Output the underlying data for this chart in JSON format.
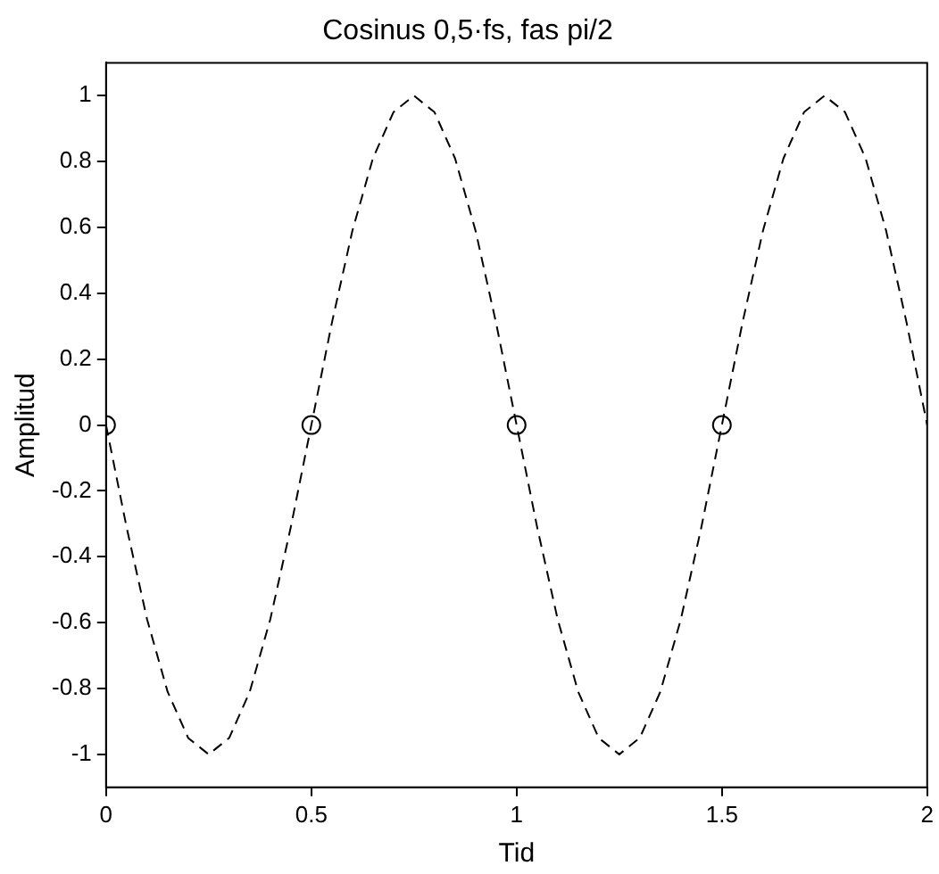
{
  "chart_data": {
    "type": "line",
    "title": "Cosinus 0,5·fs, fas pi/2",
    "xlabel": "Tid",
    "ylabel": "Amplitud",
    "xlim": [
      0,
      2
    ],
    "ylim": [
      -1.1,
      1.1
    ],
    "xticks": [
      0,
      0.5,
      1,
      1.5,
      2
    ],
    "yticks": [
      -1,
      -0.8,
      -0.6,
      -0.4,
      -0.2,
      0,
      0.2,
      0.4,
      0.6,
      0.8,
      1
    ],
    "grid": false,
    "legend": false,
    "series": [
      {
        "type": "line",
        "color": "#000000",
        "line_style": "dashed",
        "marker": "none",
        "x": [
          0,
          0.05,
          0.1,
          0.15,
          0.2,
          0.25,
          0.3,
          0.35,
          0.4,
          0.45,
          0.5,
          0.55,
          0.6,
          0.65,
          0.7,
          0.75,
          0.8,
          0.85,
          0.9,
          0.95,
          1,
          1.05,
          1.1,
          1.15,
          1.2,
          1.25,
          1.3,
          1.35,
          1.4,
          1.45,
          1.5,
          1.55,
          1.6,
          1.65,
          1.7,
          1.75,
          1.8,
          1.85,
          1.9,
          1.95,
          2
        ],
        "values": [
          0,
          -0.31,
          -0.59,
          -0.81,
          -0.95,
          -1,
          -0.95,
          -0.81,
          -0.59,
          -0.31,
          0,
          0.31,
          0.59,
          0.81,
          0.95,
          1,
          0.95,
          0.81,
          0.59,
          0.31,
          0,
          -0.31,
          -0.59,
          -0.81,
          -0.95,
          -1,
          -0.95,
          -0.81,
          -0.59,
          -0.31,
          0,
          0.31,
          0.59,
          0.81,
          0.95,
          1,
          0.95,
          0.81,
          0.59,
          0.31,
          0
        ]
      },
      {
        "type": "scatter",
        "color": "#000000",
        "marker": "circle",
        "x": [
          0,
          0.5,
          1,
          1.5
        ],
        "values": [
          0,
          0,
          0,
          0
        ]
      }
    ]
  }
}
